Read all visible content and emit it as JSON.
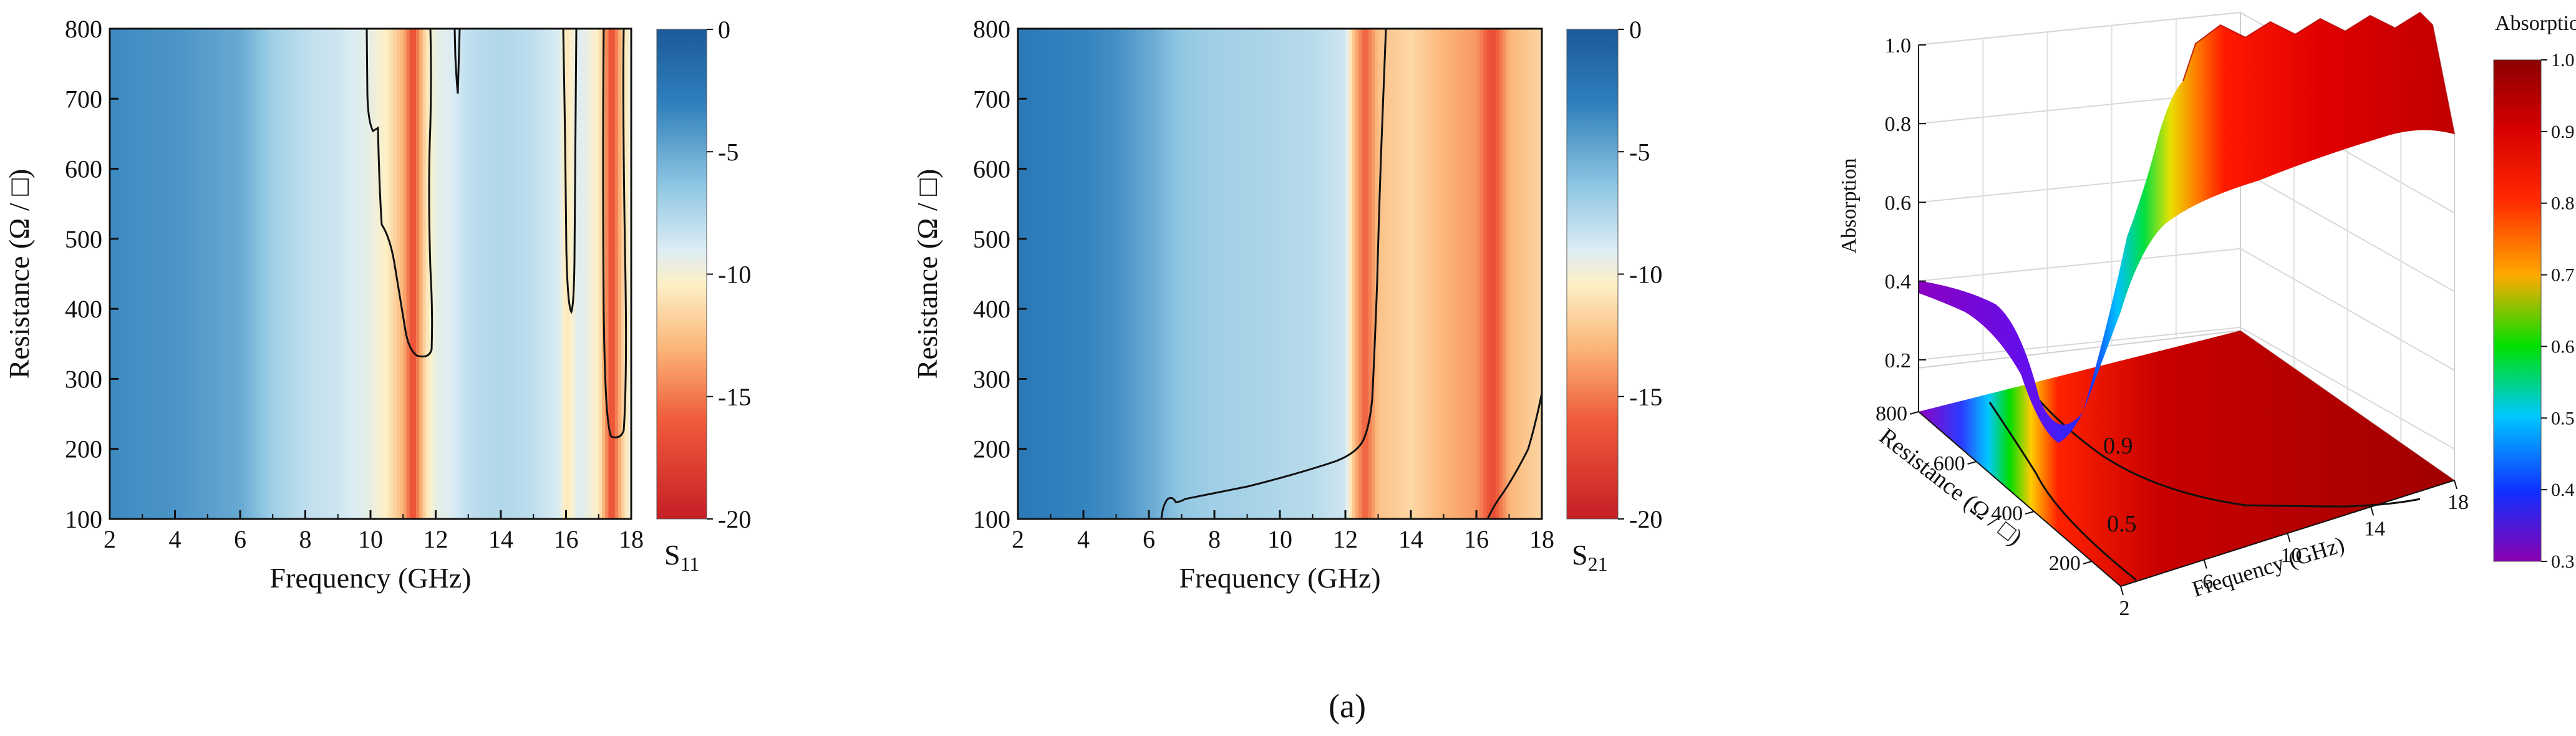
{
  "caption": "(a)",
  "chart_data": [
    {
      "type": "heatmap",
      "title": "",
      "xlabel": "Frequency (GHz)",
      "ylabel": "Resistance (Ω / □)",
      "xlim": [
        2,
        18
      ],
      "ylim": [
        100,
        800
      ],
      "xticks": [
        2,
        4,
        6,
        8,
        10,
        12,
        14,
        16,
        18
      ],
      "yticks": [
        100,
        200,
        300,
        400,
        500,
        600,
        700,
        800
      ],
      "colorbar": {
        "label_main": "S",
        "label_sub": "11",
        "range": [
          -20,
          0
        ],
        "ticks": [
          "0",
          "-5",
          "-10",
          "-15",
          "-20"
        ]
      },
      "value_by_frequency": [
        {
          "x": 2,
          "v": -3.5
        },
        {
          "x": 3,
          "v": -3.8
        },
        {
          "x": 4,
          "v": -4.0
        },
        {
          "x": 5,
          "v": -4.5
        },
        {
          "x": 6,
          "v": -5.0
        },
        {
          "x": 6.5,
          "v": -6.0
        },
        {
          "x": 7,
          "v": -7.0
        },
        {
          "x": 8,
          "v": -8.0
        },
        {
          "x": 9,
          "v": -8.5
        },
        {
          "x": 10,
          "v": -9.5
        },
        {
          "x": 10.5,
          "v": -10.5
        },
        {
          "x": 11,
          "v": -13.0
        },
        {
          "x": 11.3,
          "v": -17.0
        },
        {
          "x": 11.7,
          "v": -11.0
        },
        {
          "x": 12,
          "v": -9.5
        },
        {
          "x": 12.5,
          "v": -9.0
        },
        {
          "x": 13,
          "v": -8.0
        },
        {
          "x": 14,
          "v": -7.5
        },
        {
          "x": 15,
          "v": -8.0
        },
        {
          "x": 15.8,
          "v": -9.0
        },
        {
          "x": 16,
          "v": -11.0
        },
        {
          "x": 16.4,
          "v": -9.0
        },
        {
          "x": 17,
          "v": -10.5
        },
        {
          "x": 17.4,
          "v": -17.0
        },
        {
          "x": 17.8,
          "v": -11.0
        },
        {
          "x": 18,
          "v": -9.5
        }
      ],
      "contour_level": -10
    },
    {
      "type": "heatmap",
      "title": "",
      "xlabel": "Frequency (GHz)",
      "ylabel": "Resistance (Ω / □)",
      "xlim": [
        2,
        18
      ],
      "ylim": [
        100,
        800
      ],
      "xticks": [
        2,
        4,
        6,
        8,
        10,
        12,
        14,
        16,
        18
      ],
      "yticks": [
        100,
        200,
        300,
        400,
        500,
        600,
        700,
        800
      ],
      "colorbar": {
        "label_main": "S",
        "label_sub": "21",
        "range": [
          -20,
          0
        ],
        "ticks": [
          "0",
          "-5",
          "-10",
          "-15",
          "-20"
        ]
      },
      "value_by_frequency": [
        {
          "x": 2,
          "v": -2.5
        },
        {
          "x": 3,
          "v": -3.0
        },
        {
          "x": 4,
          "v": -3.2
        },
        {
          "x": 5,
          "v": -3.8
        },
        {
          "x": 6,
          "v": -5.0
        },
        {
          "x": 7,
          "v": -6.5
        },
        {
          "x": 8,
          "v": -7.0
        },
        {
          "x": 9,
          "v": -7.2
        },
        {
          "x": 10,
          "v": -7.5
        },
        {
          "x": 11,
          "v": -7.8
        },
        {
          "x": 12,
          "v": -8.5
        },
        {
          "x": 12.3,
          "v": -13.0
        },
        {
          "x": 12.6,
          "v": -16.0
        },
        {
          "x": 13,
          "v": -12.5
        },
        {
          "x": 14,
          "v": -11.5
        },
        {
          "x": 15,
          "v": -13.0
        },
        {
          "x": 16,
          "v": -14.0
        },
        {
          "x": 16.5,
          "v": -17.0
        },
        {
          "x": 17,
          "v": -13.0
        },
        {
          "x": 18,
          "v": -11.5
        }
      ],
      "contour_level": -10
    },
    {
      "type": "area",
      "title": "",
      "xlabel": "Frequency (GHz)",
      "ylabel": "Resistance (Ω / □)",
      "zlabel": "Absorption",
      "xticks": [
        2,
        6,
        10,
        14,
        18
      ],
      "yticks": [
        200,
        400,
        600,
        800
      ],
      "zticks": [
        0.2,
        0.4,
        0.6,
        0.8,
        1.0
      ],
      "zlim": [
        0.1,
        1.0
      ],
      "colorbar": {
        "title": "Absorption",
        "range": [
          0.3,
          1.0
        ],
        "ticks": [
          "1.0",
          "0.9",
          "0.8",
          "0.7",
          "0.6",
          "0.5",
          "0.4",
          "0.3"
        ]
      },
      "absorption_by_frequency": [
        {
          "x": 2,
          "a": 0.35
        },
        {
          "x": 3,
          "a": 0.33
        },
        {
          "x": 4,
          "a": 0.31
        },
        {
          "x": 5,
          "a": 0.29
        },
        {
          "x": 6,
          "a": 0.28
        },
        {
          "x": 6.5,
          "a": 0.33
        },
        {
          "x": 7,
          "a": 0.45
        },
        {
          "x": 7.5,
          "a": 0.6
        },
        {
          "x": 8,
          "a": 0.75
        },
        {
          "x": 8.5,
          "a": 0.85
        },
        {
          "x": 9,
          "a": 0.9
        },
        {
          "x": 10,
          "a": 0.92
        },
        {
          "x": 12,
          "a": 0.93
        },
        {
          "x": 14,
          "a": 0.92
        },
        {
          "x": 16,
          "a": 0.9
        },
        {
          "x": 18,
          "a": 0.85
        }
      ],
      "contour_labels": [
        "0.5",
        "0.9"
      ]
    }
  ]
}
